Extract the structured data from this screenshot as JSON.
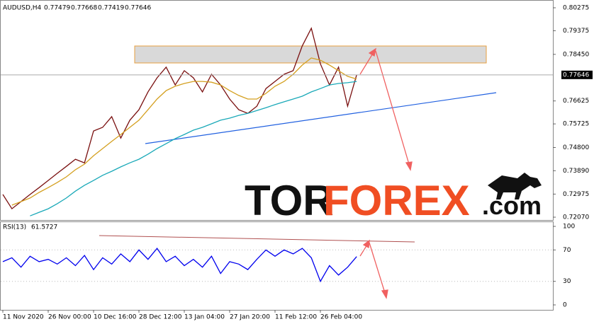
{
  "chart_data": [
    {
      "type": "line",
      "title": "AUDUSD,H4",
      "ohlc": [
        0.77479,
        0.77668,
        0.77419,
        0.77646
      ],
      "categories": [
        "11 Nov 2020",
        null,
        null,
        null,
        null,
        "26 Nov 00:00",
        null,
        null,
        null,
        null,
        "10 Dec 16:00",
        null,
        null,
        null,
        null,
        "28 Dec 12:00",
        null,
        null,
        null,
        null,
        "13 Jan 04:00",
        null,
        null,
        null,
        null,
        "27 Jan 20:00",
        null,
        null,
        null,
        null,
        "11 Feb 12:00",
        null,
        null,
        null,
        null,
        "26 Feb 04:00",
        null,
        null,
        null,
        null
      ],
      "series": [
        {
          "color": "#7a1010",
          "values": [
            0.7296,
            0.724,
            0.7268,
            0.7296,
            0.7323,
            0.7351,
            0.7379,
            0.7406,
            0.7434,
            0.742,
            0.7545,
            0.7559,
            0.7601,
            0.7517,
            0.7587,
            0.7628,
            0.7698,
            0.7753,
            0.7795,
            0.7725,
            0.7781,
            0.7753,
            0.7698,
            0.7767,
            0.7725,
            0.767,
            0.7628,
            0.7614,
            0.7642,
            0.7711,
            0.7739,
            0.7767,
            0.7781,
            0.7878,
            0.7947,
            0.7808,
            0.7725,
            0.7795,
            0.7642,
            0.7765
          ]
        },
        {
          "color": "#d4a020",
          "values": [
            null,
            0.7254,
            0.7268,
            0.7282,
            0.7304,
            0.7323,
            0.7343,
            0.7365,
            0.7393,
            0.7415,
            0.7448,
            0.7476,
            0.7504,
            0.7531,
            0.7559,
            0.7587,
            0.7628,
            0.767,
            0.7703,
            0.772,
            0.7731,
            0.7739,
            0.7739,
            0.7736,
            0.7725,
            0.7703,
            0.7684,
            0.767,
            0.767,
            0.7692,
            0.772,
            0.7739,
            0.7767,
            0.7803,
            0.7831,
            0.7822,
            0.7803,
            0.7781,
            0.7759,
            0.7748
          ]
        },
        {
          "color": "#1aa9b8",
          "values": [
            null,
            null,
            null,
            0.7212,
            0.7226,
            0.724,
            0.726,
            0.7282,
            0.7309,
            0.7332,
            0.7351,
            0.7371,
            0.7387,
            0.7404,
            0.742,
            0.7434,
            0.7454,
            0.7476,
            0.7495,
            0.7515,
            0.7531,
            0.7548,
            0.7559,
            0.7573,
            0.7587,
            0.7595,
            0.7606,
            0.7614,
            0.7625,
            0.7636,
            0.7648,
            0.7659,
            0.767,
            0.7681,
            0.7698,
            0.7711,
            0.7725,
            0.7731,
            0.7734,
            0.7739
          ]
        }
      ],
      "ylim": [
        0.7207,
        0.80275
      ],
      "yticks": [
        0.80275,
        0.79375,
        {
          "value": 0.7845,
          "label": "0.78450"
        },
        0.76625,
        0.75725,
        {
          "value": 0.748,
          "label": "0.74800"
        },
        {
          "value": 0.7389,
          "label": "0.73890"
        },
        0.72975,
        {
          "value": 0.7207,
          "label": "0.72070"
        }
      ]
    },
    {
      "type": "line",
      "title": "RSI(13)",
      "last": 61.5727,
      "series": [
        {
          "color": "#0000ee",
          "values": [
            55,
            60,
            48,
            62,
            55,
            58,
            52,
            60,
            50,
            63,
            45,
            60,
            52,
            65,
            55,
            70,
            58,
            72,
            55,
            62,
            50,
            58,
            48,
            62,
            40,
            55,
            52,
            45,
            58,
            70,
            62,
            70,
            65,
            72,
            60,
            30,
            50,
            38,
            48,
            61.5727
          ]
        }
      ],
      "ylim": [
        0,
        100
      ],
      "yticks": [
        0,
        30,
        70,
        100
      ]
    }
  ],
  "watermark": {
    "brand_dark": "TOR",
    "brand_accent": "FOREX",
    "domain": ".com"
  }
}
